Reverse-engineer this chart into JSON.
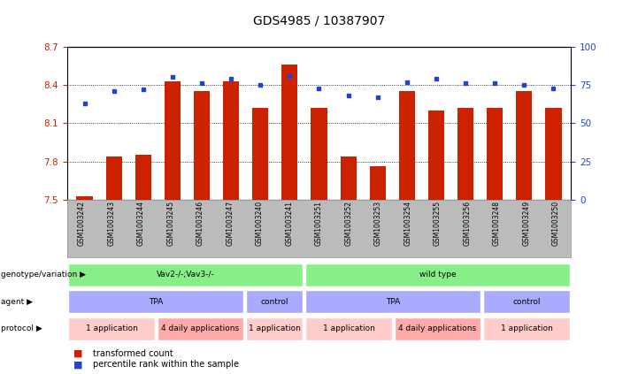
{
  "title": "GDS4985 / 10387907",
  "samples": [
    "GSM1003242",
    "GSM1003243",
    "GSM1003244",
    "GSM1003245",
    "GSM1003246",
    "GSM1003247",
    "GSM1003240",
    "GSM1003241",
    "GSM1003251",
    "GSM1003252",
    "GSM1003253",
    "GSM1003254",
    "GSM1003255",
    "GSM1003256",
    "GSM1003248",
    "GSM1003249",
    "GSM1003250"
  ],
  "bar_values": [
    7.53,
    7.84,
    7.85,
    8.43,
    8.35,
    8.43,
    8.22,
    8.56,
    8.22,
    7.84,
    7.76,
    8.35,
    8.2,
    8.22,
    8.22,
    8.35,
    8.22
  ],
  "dot_values": [
    63,
    71,
    72,
    80,
    76,
    79,
    75,
    81,
    73,
    68,
    67,
    77,
    79,
    76,
    76,
    75,
    73
  ],
  "ylim_left": [
    7.5,
    8.7
  ],
  "ylim_right": [
    0,
    100
  ],
  "yticks_left": [
    7.5,
    7.8,
    8.1,
    8.4,
    8.7
  ],
  "yticks_right": [
    0,
    25,
    50,
    75,
    100
  ],
  "bar_color": "#cc2200",
  "dot_color": "#2244cc",
  "bg_color": "#ffffff",
  "tick_area_color": "#bbbbbb",
  "geno_items": [
    {
      "label": "Vav2-/-;Vav3-/-",
      "start": 0,
      "end": 8,
      "color": "#88ee88"
    },
    {
      "label": "wild type",
      "start": 8,
      "end": 17,
      "color": "#88ee88"
    }
  ],
  "agent_items": [
    {
      "label": "TPA",
      "start": 0,
      "end": 6,
      "color": "#aaaaff"
    },
    {
      "label": "control",
      "start": 6,
      "end": 8,
      "color": "#aaaaff"
    },
    {
      "label": "TPA",
      "start": 8,
      "end": 14,
      "color": "#aaaaff"
    },
    {
      "label": "control",
      "start": 14,
      "end": 17,
      "color": "#aaaaff"
    }
  ],
  "proto_items": [
    {
      "label": "1 application",
      "start": 0,
      "end": 3,
      "color": "#ffcccc"
    },
    {
      "label": "4 daily applications",
      "start": 3,
      "end": 6,
      "color": "#ffaaaa"
    },
    {
      "label": "1 application",
      "start": 6,
      "end": 8,
      "color": "#ffcccc"
    },
    {
      "label": "1 application",
      "start": 8,
      "end": 11,
      "color": "#ffcccc"
    },
    {
      "label": "4 daily applications",
      "start": 11,
      "end": 14,
      "color": "#ffaaaa"
    },
    {
      "label": "1 application",
      "start": 14,
      "end": 17,
      "color": "#ffcccc"
    }
  ],
  "row_labels": [
    "genotype/variation",
    "agent",
    "protocol"
  ],
  "legend_items": [
    "transformed count",
    "percentile rank within the sample"
  ]
}
